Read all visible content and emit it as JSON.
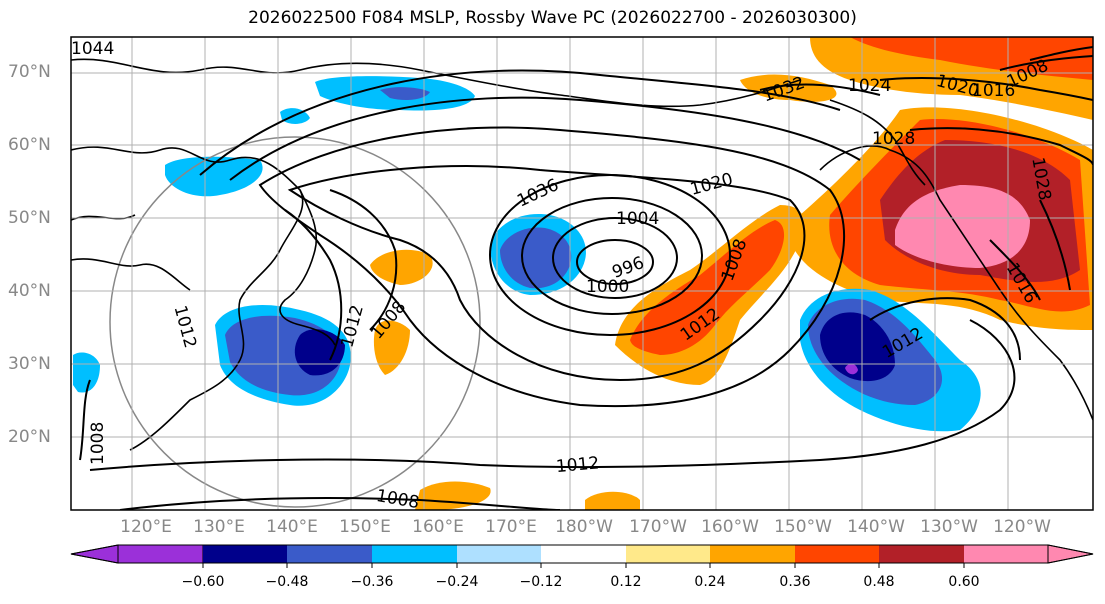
{
  "title": "2026022500 F084 MSLP, Rossby Wave PC (2026022700 - 2026030300)",
  "lat_labels": [
    "70°N",
    "60°N",
    "50°N",
    "40°N",
    "30°N",
    "20°N"
  ],
  "lon_labels": [
    "120°E",
    "130°E",
    "140°E",
    "150°E",
    "160°E",
    "170°E",
    "180°W",
    "170°W",
    "160°W",
    "150°W",
    "140°W",
    "130°W",
    "120°W"
  ],
  "contour_labels": [
    "1036",
    "1020",
    "1004",
    "996",
    "1000",
    "1008",
    "1012",
    "1012",
    "1008",
    "1012",
    "1012",
    "1008",
    "1024",
    "1032",
    "1028",
    "1028",
    "1016",
    "1016",
    "1008",
    "1020",
    "1012",
    "1008",
    "1044"
  ],
  "colorbar": {
    "ticks": [
      "−0.60",
      "−0.48",
      "−0.36",
      "−0.24",
      "−0.12",
      "0.12",
      "0.24",
      "0.36",
      "0.48",
      "0.60"
    ],
    "colors": [
      "#9b30d9",
      "#00008b",
      "#3a5bc9",
      "#00bfff",
      "#aee0ff",
      "#ffffff",
      "#ffe98a",
      "#ffa500",
      "#ff4500",
      "#b22028",
      "#ff88b0",
      "#ff88b0"
    ]
  },
  "colors": {
    "axis_text": "#888888",
    "contour": "#000000",
    "grid": "#b0b0b0"
  }
}
